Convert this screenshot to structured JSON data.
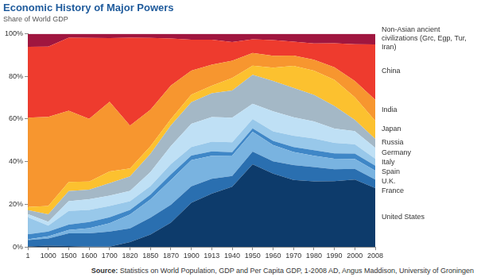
{
  "chart_data": {
    "type": "area",
    "title": "Economic History of Major Powers",
    "subtitle": "Share of World GDP",
    "source": "Source: Statistics on World Population, GDP and Per Capita GDP, 1-2008 AD, Angus Maddison, University of Groningen",
    "categories": [
      "1",
      "1000",
      "1500",
      "1600",
      "1700",
      "1820",
      "1850",
      "1870",
      "1900",
      "1913",
      "1940",
      "1950",
      "1960",
      "1970",
      "1980",
      "1990",
      "2000",
      "2008"
    ],
    "series": [
      {
        "name": "United States",
        "color": "#0d3b6b",
        "values": [
          0.3,
          0.6,
          0.4,
          0.2,
          0.2,
          2.3,
          5.8,
          11.4,
          20.7,
          25.0,
          28.3,
          38.8,
          34.4,
          31.4,
          30.8,
          30.9,
          31.6,
          27.6
        ]
      },
      {
        "name": "France",
        "color": "#2a6fb0",
        "values": [
          2.9,
          3.4,
          6.0,
          6.2,
          7.0,
          6.4,
          7.9,
          8.4,
          7.7,
          7.0,
          5.0,
          5.9,
          5.8,
          7.0,
          6.7,
          5.5,
          5.0,
          4.0
        ]
      },
      {
        "name": "U.K.",
        "color": "#79b3e0",
        "values": [
          0.4,
          1.0,
          1.6,
          2.4,
          3.9,
          6.5,
          8.6,
          11.6,
          12.3,
          10.8,
          9.6,
          9.3,
          7.6,
          6.1,
          5.3,
          5.0,
          4.7,
          4.2
        ]
      },
      {
        "name": "Spain",
        "color": "#3f87c7",
        "values": [
          2.3,
          2.2,
          2.5,
          2.9,
          2.8,
          2.2,
          2.2,
          2.6,
          2.2,
          2.0,
          1.5,
          1.6,
          1.9,
          2.4,
          2.6,
          2.5,
          2.5,
          2.3
        ]
      },
      {
        "name": "Italy",
        "color": "#98c8ea",
        "values": [
          8.0,
          2.8,
          6.4,
          5.7,
          5.3,
          4.1,
          4.0,
          4.9,
          4.0,
          4.6,
          4.7,
          4.4,
          4.5,
          5.3,
          5.5,
          4.9,
          4.4,
          3.3
        ]
      },
      {
        "name": "Germany",
        "color": "#bfe0f5",
        "values": [
          1.5,
          1.8,
          4.6,
          5.0,
          4.9,
          4.8,
          6.6,
          8.4,
          10.8,
          11.5,
          11.5,
          7.1,
          9.4,
          8.6,
          8.0,
          6.7,
          6.1,
          5.1
        ]
      },
      {
        "name": "Russia",
        "color": "#a4b8c6",
        "values": [
          1.9,
          3.5,
          4.7,
          4.5,
          5.8,
          6.8,
          8.6,
          9.7,
          10.2,
          11.2,
          12.8,
          13.6,
          14.2,
          13.8,
          12.4,
          10.6,
          5.3,
          4.2
        ]
      },
      {
        "name": "Japan",
        "color": "#fcc12f",
        "values": [
          1.5,
          3.9,
          4.3,
          3.8,
          5.5,
          3.7,
          3.5,
          3.0,
          3.5,
          3.5,
          5.8,
          4.3,
          6.3,
          10.3,
          11.4,
          12.3,
          10.6,
          8.4
        ]
      },
      {
        "name": "India",
        "color": "#f7962f",
        "values": [
          41.8,
          41.8,
          33.4,
          29.4,
          32.7,
          20.1,
          17.1,
          15.7,
          11.3,
          9.9,
          8.1,
          5.9,
          5.5,
          4.8,
          5.1,
          5.8,
          7.6,
          9.9
        ]
      },
      {
        "name": "China",
        "color": "#ee3b2e",
        "values": [
          33.2,
          32.9,
          34.2,
          37.9,
          29.8,
          41.2,
          33.7,
          22.0,
          14.5,
          11.7,
          8.8,
          6.5,
          7.4,
          6.5,
          7.6,
          11.3,
          17.2,
          25.9
        ]
      },
      {
        "name": "Non-Asian ancient civilizations (Grc, Egp, Tur, Iran)",
        "color": "#a0163f",
        "values": [
          6.2,
          6.1,
          1.9,
          2.0,
          2.1,
          1.9,
          2.0,
          2.3,
          2.8,
          2.8,
          3.9,
          2.6,
          3.0,
          3.8,
          4.6,
          4.5,
          5.0,
          5.1
        ]
      }
    ],
    "ylim": [
      0,
      100
    ],
    "yticks": [
      {
        "value": 0,
        "label": "0%"
      },
      {
        "value": 20,
        "label": "20%"
      },
      {
        "value": 40,
        "label": "40%"
      },
      {
        "value": 60,
        "label": "60%"
      },
      {
        "value": 80,
        "label": "80%"
      },
      {
        "value": 100,
        "label": "100%"
      }
    ],
    "stacked": true,
    "grid": false,
    "legend": "right"
  }
}
